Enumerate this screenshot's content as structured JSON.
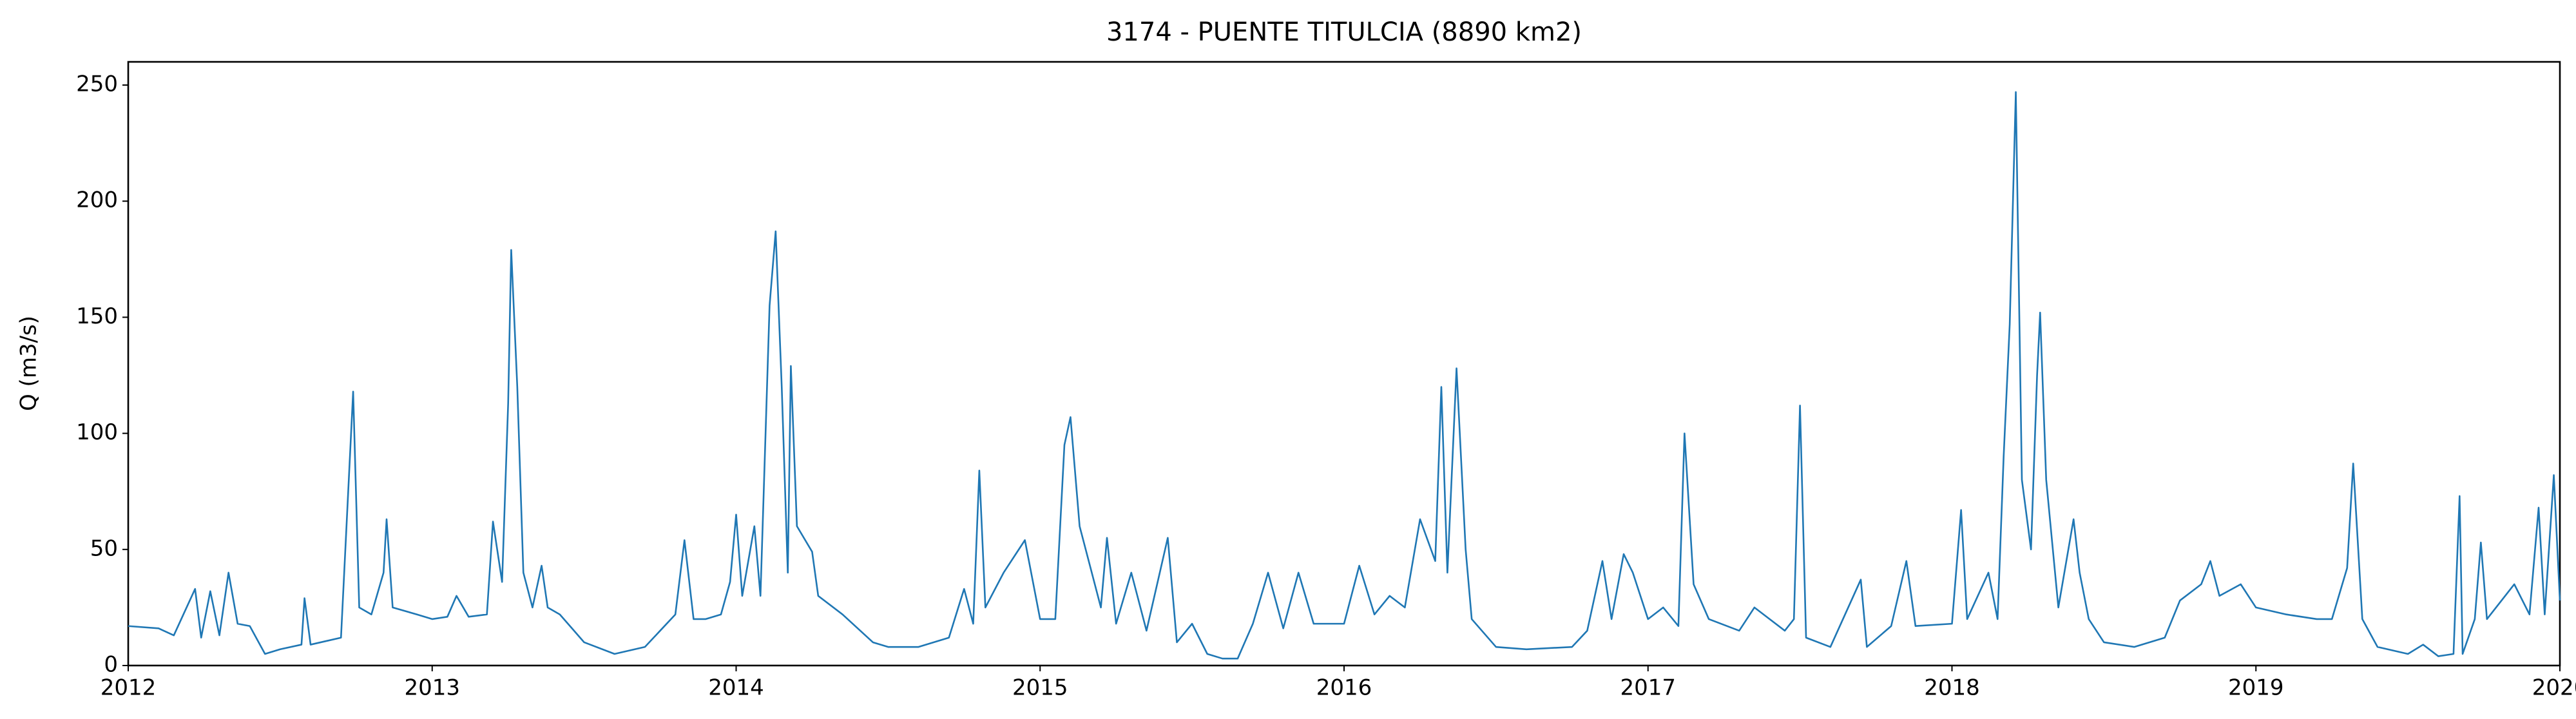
{
  "chart_data": {
    "type": "line",
    "title": "3174 - PUENTE TITULCIA (8890 km2)",
    "y_label": "Q (m3/s)",
    "x": [
      2012.0,
      2012.1,
      2012.15,
      2012.22,
      2012.24,
      2012.27,
      2012.3,
      2012.33,
      2012.36,
      2012.4,
      2012.45,
      2012.5,
      2012.57,
      2012.58,
      2012.6,
      2012.7,
      2012.74,
      2012.76,
      2012.8,
      2012.84,
      2012.85,
      2012.87,
      2012.95,
      2013.0,
      2013.05,
      2013.08,
      2013.12,
      2013.18,
      2013.2,
      2013.23,
      2013.25,
      2013.26,
      2013.28,
      2013.3,
      2013.33,
      2013.36,
      2013.38,
      2013.42,
      2013.5,
      2013.6,
      2013.7,
      2013.75,
      2013.8,
      2013.83,
      2013.86,
      2013.9,
      2013.95,
      2013.98,
      2014.0,
      2014.02,
      2014.06,
      2014.08,
      2014.11,
      2014.13,
      2014.15,
      2014.17,
      2014.18,
      2014.2,
      2014.25,
      2014.27,
      2014.35,
      2014.45,
      2014.5,
      2014.6,
      2014.7,
      2014.75,
      2014.78,
      2014.8,
      2014.82,
      2014.88,
      2014.92,
      2014.95,
      2015.0,
      2015.05,
      2015.08,
      2015.1,
      2015.13,
      2015.17,
      2015.2,
      2015.22,
      2015.25,
      2015.3,
      2015.35,
      2015.42,
      2015.45,
      2015.5,
      2015.55,
      2015.6,
      2015.65,
      2015.7,
      2015.75,
      2015.8,
      2015.85,
      2015.9,
      2016.0,
      2016.05,
      2016.1,
      2016.15,
      2016.2,
      2016.25,
      2016.3,
      2016.32,
      2016.34,
      2016.37,
      2016.4,
      2016.42,
      2016.5,
      2016.6,
      2016.75,
      2016.8,
      2016.85,
      2016.88,
      2016.92,
      2016.95,
      2017.0,
      2017.05,
      2017.1,
      2017.12,
      2017.15,
      2017.2,
      2017.3,
      2017.35,
      2017.45,
      2017.48,
      2017.5,
      2017.52,
      2017.6,
      2017.7,
      2017.72,
      2017.8,
      2017.85,
      2017.88,
      2018.0,
      2018.03,
      2018.05,
      2018.12,
      2018.15,
      2018.17,
      2018.19,
      2018.21,
      2018.23,
      2018.26,
      2018.28,
      2018.29,
      2018.31,
      2018.35,
      2018.4,
      2018.42,
      2018.45,
      2018.5,
      2018.6,
      2018.7,
      2018.75,
      2018.82,
      2018.85,
      2018.88,
      2018.95,
      2019.0,
      2019.1,
      2019.2,
      2019.25,
      2019.3,
      2019.32,
      2019.35,
      2019.4,
      2019.5,
      2019.55,
      2019.6,
      2019.65,
      2019.67,
      2019.68,
      2019.72,
      2019.74,
      2019.76,
      2019.85,
      2019.9,
      2019.93,
      2019.95,
      2019.98,
      2020.0
    ],
    "series": [
      {
        "name": "Q",
        "color": "#1f77b4",
        "values": [
          17,
          16,
          13,
          33,
          12,
          32,
          13,
          40,
          18,
          17,
          5,
          7,
          9,
          29,
          9,
          12,
          118,
          25,
          22,
          40,
          63,
          25,
          22,
          20,
          21,
          30,
          21,
          22,
          62,
          36,
          113,
          179,
          120,
          40,
          25,
          43,
          25,
          22,
          10,
          5,
          8,
          15,
          22,
          54,
          20,
          20,
          22,
          36,
          65,
          30,
          60,
          30,
          155,
          187,
          120,
          40,
          129,
          60,
          49,
          30,
          22,
          10,
          8,
          8,
          12,
          33,
          18,
          84,
          25,
          40,
          48,
          54,
          20,
          20,
          95,
          107,
          60,
          40,
          25,
          55,
          18,
          40,
          15,
          55,
          10,
          18,
          5,
          3,
          3,
          18,
          40,
          16,
          40,
          18,
          18,
          43,
          22,
          30,
          25,
          63,
          45,
          120,
          40,
          128,
          50,
          20,
          8,
          7,
          8,
          15,
          45,
          20,
          48,
          40,
          20,
          25,
          17,
          100,
          35,
          20,
          15,
          25,
          15,
          20,
          112,
          12,
          8,
          37,
          8,
          17,
          45,
          17,
          18,
          67,
          20,
          40,
          20,
          90,
          147,
          247,
          80,
          50,
          125,
          152,
          80,
          25,
          63,
          40,
          20,
          10,
          8,
          12,
          28,
          35,
          45,
          30,
          35,
          25,
          22,
          20,
          20,
          42,
          87,
          20,
          8,
          5,
          9,
          4,
          5,
          73,
          5,
          20,
          53,
          20,
          35,
          22,
          68,
          22,
          82,
          28
        ]
      }
    ],
    "xlim": [
      2012,
      2020
    ],
    "xticks": [
      2012,
      2013,
      2014,
      2015,
      2016,
      2017,
      2018,
      2019,
      2020
    ],
    "ylim": [
      0,
      260
    ],
    "yticks": [
      0,
      50,
      100,
      150,
      200,
      250
    ]
  }
}
